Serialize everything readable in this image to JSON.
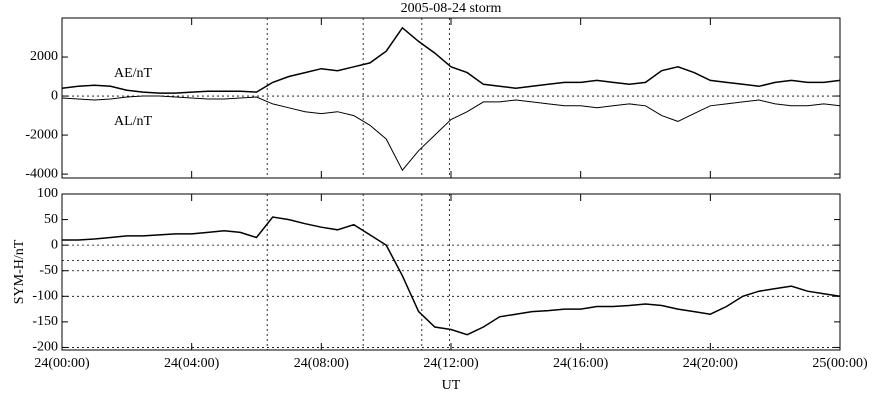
{
  "chart_data": [
    {
      "type": "line",
      "title": "2005-08-24 storm",
      "x": [
        0,
        0.5,
        1,
        1.5,
        2,
        2.5,
        3,
        3.5,
        4,
        4.5,
        5,
        5.5,
        6,
        6.5,
        7,
        7.5,
        8,
        8.5,
        9,
        9.5,
        10,
        10.5,
        11,
        11.5,
        12,
        12.5,
        13,
        13.5,
        14,
        14.5,
        15,
        15.5,
        16,
        16.5,
        17,
        17.5,
        18,
        18.5,
        19,
        19.5,
        20,
        20.5,
        21,
        21.5,
        22,
        22.5,
        23,
        23.5,
        24
      ],
      "xlim": [
        0,
        24
      ],
      "ylim": [
        -4200,
        4000
      ],
      "yticks": [
        -4000,
        -2000,
        0,
        2000
      ],
      "hlines": [
        0
      ],
      "vlines": [
        6.33,
        9.29,
        11.1,
        11.95
      ],
      "series": [
        {
          "name": "AE/nT",
          "color": "#000000",
          "values": [
            400,
            500,
            550,
            500,
            300,
            200,
            150,
            150,
            200,
            250,
            250,
            250,
            200,
            700,
            1000,
            1200,
            1400,
            1300,
            1500,
            1700,
            2300,
            3500,
            2800,
            2200,
            1500,
            1200,
            600,
            500,
            400,
            500,
            600,
            700,
            700,
            800,
            700,
            600,
            700,
            1300,
            1500,
            1200,
            800,
            700,
            600,
            500,
            700,
            800,
            700,
            700,
            800
          ]
        },
        {
          "name": "AL/nT",
          "color": "#000000",
          "values": [
            -100,
            -150,
            -200,
            -150,
            -50,
            0,
            0,
            -50,
            -100,
            -150,
            -150,
            -100,
            -50,
            -400,
            -600,
            -800,
            -900,
            -800,
            -1000,
            -1500,
            -2200,
            -3800,
            -2800,
            -2000,
            -1200,
            -800,
            -300,
            -300,
            -200,
            -300,
            -400,
            -500,
            -500,
            -600,
            -500,
            -400,
            -500,
            -1000,
            -1300,
            -900,
            -500,
            -400,
            -300,
            -200,
            -400,
            -500,
            -500,
            -400,
            -500
          ]
        }
      ]
    },
    {
      "type": "line",
      "y_label": "SYM-H/nT",
      "x_label": "UT",
      "x": [
        0,
        0.5,
        1,
        1.5,
        2,
        2.5,
        3,
        3.5,
        4,
        4.5,
        5,
        5.5,
        6,
        6.5,
        7,
        7.5,
        8,
        8.5,
        9,
        9.5,
        10,
        10.5,
        11,
        11.5,
        12,
        12.5,
        13,
        13.5,
        14,
        14.5,
        15,
        15.5,
        16,
        16.5,
        17,
        17.5,
        18,
        18.5,
        19,
        19.5,
        20,
        20.5,
        21,
        21.5,
        22,
        22.5,
        23,
        23.5,
        24
      ],
      "xlim": [
        0,
        24
      ],
      "xticks": [
        {
          "value": 0,
          "label": "24(00:00)"
        },
        {
          "value": 4,
          "label": "24(04:00)"
        },
        {
          "value": 8,
          "label": "24(08:00)"
        },
        {
          "value": 12,
          "label": "24(12:00)"
        },
        {
          "value": 16,
          "label": "24(16:00)"
        },
        {
          "value": 20,
          "label": "24(20:00)"
        },
        {
          "value": 24,
          "label": "25(00:00)"
        }
      ],
      "ylim": [
        -205,
        100
      ],
      "yticks": [
        -200,
        -150,
        -100,
        -50,
        0,
        50,
        100
      ],
      "hlines": [
        0,
        -30,
        -50,
        -100,
        -200
      ],
      "vlines": [
        6.33,
        9.29,
        11.1,
        11.95
      ],
      "series": [
        {
          "color": "#000000",
          "values": [
            10,
            10,
            12,
            15,
            18,
            18,
            20,
            22,
            22,
            25,
            28,
            25,
            15,
            55,
            50,
            42,
            35,
            30,
            40,
            20,
            0,
            -60,
            -130,
            -160,
            -165,
            -175,
            -160,
            -140,
            -135,
            -130,
            -128,
            -125,
            -125,
            -120,
            -120,
            -118,
            -115,
            -118,
            -125,
            -130,
            -135,
            -120,
            -100,
            -90,
            -85,
            -80,
            -90,
            -95,
            -100
          ]
        }
      ]
    }
  ]
}
